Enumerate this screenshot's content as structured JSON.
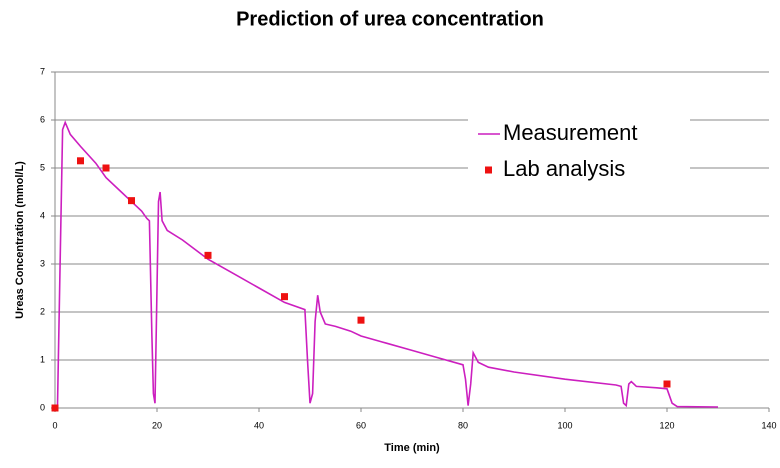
{
  "chart_data": {
    "type": "line",
    "title": "Prediction of urea concentration",
    "xlabel": "Time (min)",
    "ylabel": "Ureas Concentration (mmol/L)",
    "xlim": [
      0,
      140
    ],
    "xticks": [
      0,
      20,
      40,
      60,
      80,
      100,
      120,
      140
    ],
    "ylim": [
      0,
      7
    ],
    "yticks": [
      0,
      1,
      2,
      3,
      4,
      5,
      6,
      7
    ],
    "grid": true,
    "legend": "upper right",
    "series": [
      {
        "name": "Measurement",
        "type": "line",
        "color": "#cc1fbf",
        "x": [
          0,
          0.5,
          1,
          1.5,
          2,
          3,
          5,
          8,
          10,
          13,
          15,
          17,
          18,
          18.5,
          19,
          19.3,
          19.6,
          20,
          20.3,
          20.6,
          21,
          22,
          25,
          30,
          35,
          40,
          45,
          49,
          49.5,
          50,
          50.5,
          51,
          51.5,
          52,
          53,
          55,
          58,
          60,
          65,
          70,
          75,
          80,
          80.5,
          81,
          81.5,
          82,
          83,
          85,
          90,
          100,
          110,
          111,
          111.5,
          112,
          112.5,
          113,
          114,
          118,
          120,
          121,
          122,
          130
        ],
        "values": [
          0,
          0.05,
          3,
          5.8,
          5.95,
          5.7,
          5.45,
          5.1,
          4.8,
          4.5,
          4.3,
          4.1,
          3.95,
          3.9,
          1.5,
          0.3,
          0.1,
          2.5,
          4.3,
          4.5,
          3.9,
          3.7,
          3.5,
          3.1,
          2.8,
          2.5,
          2.2,
          2.05,
          1,
          0.1,
          0.3,
          1.8,
          2.35,
          2,
          1.75,
          1.7,
          1.6,
          1.5,
          1.35,
          1.2,
          1.05,
          0.9,
          0.6,
          0.05,
          0.5,
          1.15,
          0.95,
          0.85,
          0.75,
          0.6,
          0.48,
          0.45,
          0.1,
          0.05,
          0.5,
          0.55,
          0.45,
          0.42,
          0.4,
          0.1,
          0.03,
          0.02
        ]
      },
      {
        "name": "Lab analysis",
        "type": "scatter",
        "color": "#ee1111",
        "x": [
          0,
          5,
          10,
          15,
          30,
          45,
          60,
          120
        ],
        "values": [
          0,
          5.15,
          5,
          4.32,
          3.18,
          2.32,
          1.83,
          0.5
        ]
      }
    ]
  }
}
